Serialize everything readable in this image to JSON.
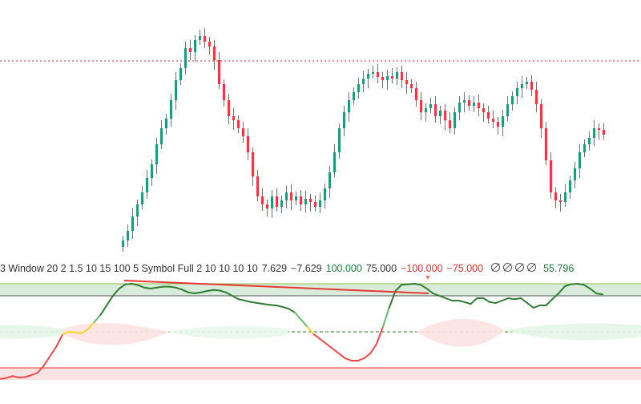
{
  "indicator": {
    "settings": "3 Window 20 2 1.5 10 15 100 5 Symbol Full 2 10 10 10 10",
    "values": [
      {
        "text": "7.629",
        "tone": "neutral"
      },
      {
        "text": "−7.629",
        "tone": "neutral"
      },
      {
        "text": "100.000",
        "tone": "pos"
      },
      {
        "text": "75.000",
        "tone": "neutral"
      },
      {
        "text": "−100.000",
        "tone": "neg"
      },
      {
        "text": "−75.000",
        "tone": "neg"
      }
    ],
    "null_icon_count": 4,
    "last_value": "55.796"
  },
  "colors": {
    "bull": "#22997b",
    "bear": "#f23645",
    "price_line": "#e0312b",
    "osc_green": "#2e7d32",
    "osc_light_green": "#66bb6a",
    "osc_yellow": "#f5d623",
    "osc_red": "#f04848",
    "overbought_zone": "#d9ecdc",
    "oversold_zone": "#fde4e4",
    "divergence_line": "#e53935",
    "signal_arrow": "#f06a72"
  },
  "chart_data": [
    {
      "type": "candlestick",
      "title": "",
      "price_line": 76,
      "candles_close": [
        300,
        288,
        270,
        255,
        240,
        222,
        205,
        180,
        160,
        148,
        125,
        100,
        85,
        60,
        65,
        50,
        45,
        52,
        58,
        75,
        105,
        125,
        145,
        150,
        160,
        170,
        190,
        220,
        245,
        255,
        260,
        245,
        258,
        250,
        240,
        250,
        245,
        255,
        248,
        252,
        258,
        250,
        235,
        215,
        190,
        160,
        140,
        125,
        115,
        105,
        98,
        92,
        90,
        96,
        100,
        95,
        98,
        90,
        100,
        105,
        110,
        125,
        140,
        135,
        130,
        145,
        138,
        150,
        160,
        140,
        128,
        125,
        132,
        128,
        135,
        140,
        148,
        152,
        158,
        145,
        130,
        120,
        110,
        105,
        102,
        112,
        130,
        160,
        200,
        240,
        250,
        252,
        240,
        225,
        210,
        190,
        180,
        172,
        160,
        162,
        168
      ],
      "price_scale": {
        "top": 20,
        "bottom": 310
      }
    },
    {
      "type": "line",
      "title": "",
      "ylim": [
        -100,
        100
      ],
      "levels": [
        100,
        75,
        0,
        -75,
        -100
      ],
      "series": [
        {
          "values": [
            -98,
            -96,
            -92,
            -95,
            -94,
            -90,
            -85,
            -70,
            -50,
            -30,
            -5,
            0,
            -1,
            -3,
            5,
            20,
            35,
            55,
            75,
            90,
            99,
            100,
            97,
            92,
            90,
            92,
            94,
            94,
            92,
            88,
            82,
            80,
            82,
            85,
            87,
            86,
            82,
            75,
            68,
            65,
            62,
            60,
            58,
            56,
            55,
            52,
            48,
            40,
            25,
            10,
            -5,
            -15,
            -25,
            -35,
            -45,
            -55,
            -60,
            -60,
            -55,
            -45,
            -25,
            10,
            50,
            85,
            98,
            99,
            100,
            98,
            90,
            80,
            75,
            70,
            65,
            65,
            62,
            58,
            70,
            70,
            62,
            60,
            65,
            70,
            68,
            70,
            60,
            50,
            55,
            55,
            68,
            80,
            95,
            99,
            100,
            98,
            90,
            80,
            78
          ]
        }
      ]
    }
  ]
}
